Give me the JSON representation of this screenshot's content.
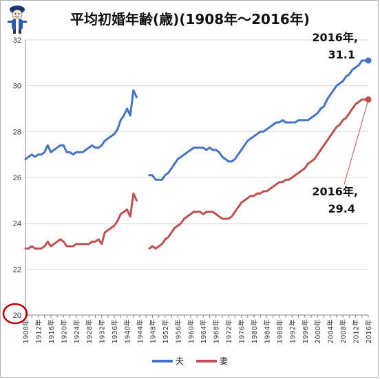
{
  "chart_data": {
    "type": "line",
    "title": "平均初婚年齢(歳)(1908年～2016年)",
    "ylim": [
      20,
      32
    ],
    "yticks": [
      "20",
      "22",
      "24",
      "26",
      "28",
      "30",
      "32"
    ],
    "xlim": [
      1908,
      2016
    ],
    "xticks": [
      "1908年",
      "1912年",
      "1916年",
      "1920年",
      "1924年",
      "1928年",
      "1932年",
      "1936年",
      "1940年",
      "1944年",
      "1948年",
      "1952年",
      "1956年",
      "1960年",
      "1964年",
      "1968年",
      "1972年",
      "1976年",
      "1980年",
      "1984年",
      "1988年",
      "1992年",
      "1996年",
      "2000年",
      "2004年",
      "2008年",
      "2012年",
      "2016年"
    ],
    "legend_position": "bottom",
    "grid": "horizontal",
    "highlight_tick": "20",
    "series": [
      {
        "name": "夫",
        "color": "#4472C4",
        "points": [
          [
            1908,
            26.8
          ],
          [
            1909,
            26.9
          ],
          [
            1910,
            27.0
          ],
          [
            1911,
            26.9
          ],
          [
            1912,
            27.0
          ],
          [
            1913,
            27.0
          ],
          [
            1914,
            27.1
          ],
          [
            1915,
            27.4
          ],
          [
            1916,
            27.1
          ],
          [
            1917,
            27.2
          ],
          [
            1918,
            27.3
          ],
          [
            1919,
            27.4
          ],
          [
            1920,
            27.4
          ],
          [
            1921,
            27.1
          ],
          [
            1922,
            27.1
          ],
          [
            1923,
            27.0
          ],
          [
            1924,
            27.1
          ],
          [
            1925,
            27.1
          ],
          [
            1926,
            27.1
          ],
          [
            1927,
            27.2
          ],
          [
            1928,
            27.3
          ],
          [
            1929,
            27.4
          ],
          [
            1930,
            27.3
          ],
          [
            1931,
            27.3
          ],
          [
            1932,
            27.4
          ],
          [
            1933,
            27.6
          ],
          [
            1934,
            27.7
          ],
          [
            1935,
            27.8
          ],
          [
            1936,
            27.9
          ],
          [
            1937,
            28.1
          ],
          [
            1938,
            28.5
          ],
          [
            1939,
            28.7
          ],
          [
            1940,
            29.0
          ],
          [
            1941,
            28.7
          ],
          [
            1942,
            29.8
          ],
          [
            1943,
            29.5
          ],
          null,
          [
            1947,
            26.1
          ],
          [
            1948,
            26.1
          ],
          [
            1949,
            25.9
          ],
          [
            1950,
            25.9
          ],
          [
            1951,
            25.9
          ],
          [
            1952,
            26.1
          ],
          [
            1953,
            26.2
          ],
          [
            1954,
            26.4
          ],
          [
            1955,
            26.6
          ],
          [
            1956,
            26.8
          ],
          [
            1957,
            26.9
          ],
          [
            1958,
            27.0
          ],
          [
            1959,
            27.1
          ],
          [
            1960,
            27.2
          ],
          [
            1961,
            27.3
          ],
          [
            1962,
            27.3
          ],
          [
            1963,
            27.3
          ],
          [
            1964,
            27.3
          ],
          [
            1965,
            27.2
          ],
          [
            1966,
            27.3
          ],
          [
            1967,
            27.2
          ],
          [
            1968,
            27.2
          ],
          [
            1969,
            27.1
          ],
          [
            1970,
            26.9
          ],
          [
            1971,
            26.8
          ],
          [
            1972,
            26.7
          ],
          [
            1973,
            26.7
          ],
          [
            1974,
            26.8
          ],
          [
            1975,
            27.0
          ],
          [
            1976,
            27.2
          ],
          [
            1977,
            27.4
          ],
          [
            1978,
            27.6
          ],
          [
            1979,
            27.7
          ],
          [
            1980,
            27.8
          ],
          [
            1981,
            27.9
          ],
          [
            1982,
            28.0
          ],
          [
            1983,
            28.0
          ],
          [
            1984,
            28.1
          ],
          [
            1985,
            28.2
          ],
          [
            1986,
            28.3
          ],
          [
            1987,
            28.4
          ],
          [
            1988,
            28.4
          ],
          [
            1989,
            28.5
          ],
          [
            1990,
            28.4
          ],
          [
            1991,
            28.4
          ],
          [
            1992,
            28.4
          ],
          [
            1993,
            28.4
          ],
          [
            1994,
            28.5
          ],
          [
            1995,
            28.5
          ],
          [
            1996,
            28.5
          ],
          [
            1997,
            28.5
          ],
          [
            1998,
            28.6
          ],
          [
            1999,
            28.7
          ],
          [
            2000,
            28.8
          ],
          [
            2001,
            29.0
          ],
          [
            2002,
            29.1
          ],
          [
            2003,
            29.4
          ],
          [
            2004,
            29.6
          ],
          [
            2005,
            29.8
          ],
          [
            2006,
            30.0
          ],
          [
            2007,
            30.1
          ],
          [
            2008,
            30.2
          ],
          [
            2009,
            30.4
          ],
          [
            2010,
            30.5
          ],
          [
            2011,
            30.7
          ],
          [
            2012,
            30.8
          ],
          [
            2013,
            30.9
          ],
          [
            2014,
            31.1
          ],
          [
            2015,
            31.1
          ],
          [
            2016,
            31.1
          ]
        ]
      },
      {
        "name": "妻",
        "color": "#C0504D",
        "points": [
          [
            1908,
            22.9
          ],
          [
            1909,
            22.9
          ],
          [
            1910,
            23.0
          ],
          [
            1911,
            22.9
          ],
          [
            1912,
            22.9
          ],
          [
            1913,
            22.9
          ],
          [
            1914,
            23.0
          ],
          [
            1915,
            23.2
          ],
          [
            1916,
            23.0
          ],
          [
            1917,
            23.1
          ],
          [
            1918,
            23.2
          ],
          [
            1919,
            23.3
          ],
          [
            1920,
            23.2
          ],
          [
            1921,
            23.0
          ],
          [
            1922,
            23.0
          ],
          [
            1923,
            23.0
          ],
          [
            1924,
            23.1
          ],
          [
            1925,
            23.1
          ],
          [
            1926,
            23.1
          ],
          [
            1927,
            23.1
          ],
          [
            1928,
            23.1
          ],
          [
            1929,
            23.2
          ],
          [
            1930,
            23.2
          ],
          [
            1931,
            23.3
          ],
          [
            1932,
            23.1
          ],
          [
            1933,
            23.6
          ],
          [
            1934,
            23.7
          ],
          [
            1935,
            23.8
          ],
          [
            1936,
            23.9
          ],
          [
            1937,
            24.1
          ],
          [
            1938,
            24.4
          ],
          [
            1939,
            24.5
          ],
          [
            1940,
            24.6
          ],
          [
            1941,
            24.3
          ],
          [
            1942,
            25.3
          ],
          [
            1943,
            25.0
          ],
          null,
          [
            1947,
            22.9
          ],
          [
            1948,
            23.0
          ],
          [
            1949,
            22.9
          ],
          [
            1950,
            23.0
          ],
          [
            1951,
            23.1
          ],
          [
            1952,
            23.3
          ],
          [
            1953,
            23.4
          ],
          [
            1954,
            23.6
          ],
          [
            1955,
            23.8
          ],
          [
            1956,
            23.9
          ],
          [
            1957,
            24.0
          ],
          [
            1958,
            24.2
          ],
          [
            1959,
            24.3
          ],
          [
            1960,
            24.4
          ],
          [
            1961,
            24.5
          ],
          [
            1962,
            24.5
          ],
          [
            1963,
            24.5
          ],
          [
            1964,
            24.4
          ],
          [
            1965,
            24.5
          ],
          [
            1966,
            24.5
          ],
          [
            1967,
            24.5
          ],
          [
            1968,
            24.4
          ],
          [
            1969,
            24.3
          ],
          [
            1970,
            24.2
          ],
          [
            1971,
            24.2
          ],
          [
            1972,
            24.2
          ],
          [
            1973,
            24.3
          ],
          [
            1974,
            24.5
          ],
          [
            1975,
            24.7
          ],
          [
            1976,
            24.9
          ],
          [
            1977,
            25.0
          ],
          [
            1978,
            25.1
          ],
          [
            1979,
            25.2
          ],
          [
            1980,
            25.2
          ],
          [
            1981,
            25.3
          ],
          [
            1982,
            25.3
          ],
          [
            1983,
            25.4
          ],
          [
            1984,
            25.4
          ],
          [
            1985,
            25.5
          ],
          [
            1986,
            25.6
          ],
          [
            1987,
            25.7
          ],
          [
            1988,
            25.8
          ],
          [
            1989,
            25.8
          ],
          [
            1990,
            25.9
          ],
          [
            1991,
            25.9
          ],
          [
            1992,
            26.0
          ],
          [
            1993,
            26.1
          ],
          [
            1994,
            26.2
          ],
          [
            1995,
            26.3
          ],
          [
            1996,
            26.4
          ],
          [
            1997,
            26.6
          ],
          [
            1998,
            26.7
          ],
          [
            1999,
            26.8
          ],
          [
            2000,
            27.0
          ],
          [
            2001,
            27.2
          ],
          [
            2002,
            27.4
          ],
          [
            2003,
            27.6
          ],
          [
            2004,
            27.8
          ],
          [
            2005,
            28.0
          ],
          [
            2006,
            28.2
          ],
          [
            2007,
            28.3
          ],
          [
            2008,
            28.5
          ],
          [
            2009,
            28.6
          ],
          [
            2010,
            28.8
          ],
          [
            2011,
            29.0
          ],
          [
            2012,
            29.2
          ],
          [
            2013,
            29.3
          ],
          [
            2014,
            29.4
          ],
          [
            2015,
            29.4
          ],
          [
            2016,
            29.4
          ]
        ]
      }
    ],
    "annotations": [
      {
        "line1": "2016年,",
        "line2": "31.1",
        "series": "夫"
      },
      {
        "line1": "2016年,",
        "line2": "29.4",
        "series": "妻"
      }
    ]
  }
}
